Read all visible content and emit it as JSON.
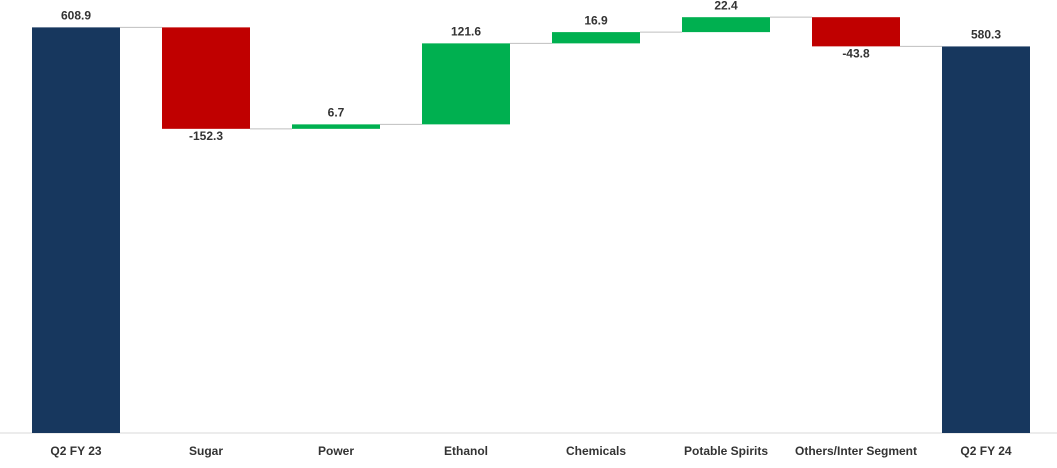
{
  "chart_data": {
    "type": "waterfall",
    "categories": [
      "Q2 FY 23",
      "Sugar",
      "Power",
      "Ethanol",
      "Chemicals",
      "Potable Spirits",
      "Others/Inter Segment",
      "Q2 FY 24"
    ],
    "values": [
      608.9,
      -152.3,
      6.7,
      121.6,
      16.9,
      22.4,
      -43.8,
      580.3
    ],
    "measure": [
      "total",
      "relative",
      "relative",
      "relative",
      "relative",
      "relative",
      "relative",
      "total"
    ],
    "colors": {
      "total": "#17375e",
      "increase": "#00b050",
      "decrease": "#c00000"
    },
    "ylim": [
      0,
      650
    ]
  }
}
